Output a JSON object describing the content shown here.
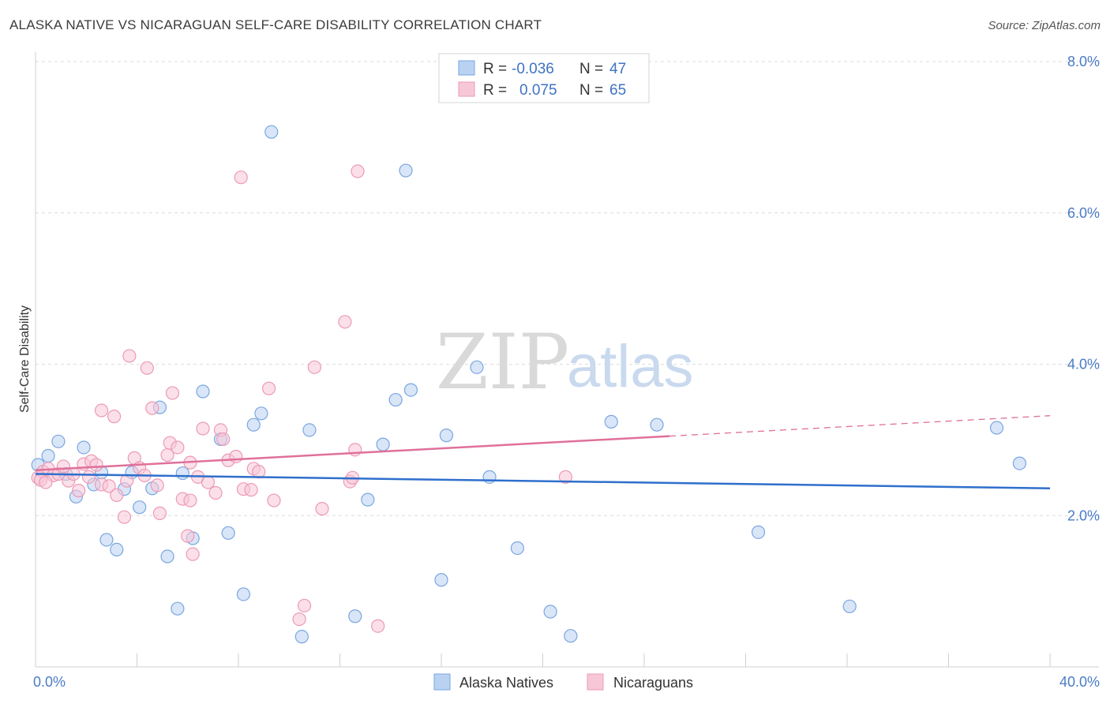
{
  "title": "ALASKA NATIVE VS NICARAGUAN SELF-CARE DISABILITY CORRELATION CHART",
  "source": "Source: ZipAtlas.com",
  "watermark": {
    "zip": "ZIP",
    "atlas": "atlas"
  },
  "chart_data": {
    "type": "scatter",
    "ylabel": "Self-Care Disability",
    "xlim": [
      0,
      40
    ],
    "ylim": [
      0,
      8
    ],
    "x_tick_labels": [
      "0.0%",
      "40.0%"
    ],
    "y_ticks": [
      2,
      4,
      6,
      8
    ],
    "y_tick_labels": [
      "2.0%",
      "4.0%",
      "6.0%",
      "8.0%"
    ],
    "grid": "horizontal dashed",
    "legend_placement": "top-center",
    "legend": {
      "rows": [
        {
          "r_label": "R =",
          "r_value": "-0.036",
          "n_label": "N =",
          "n_value": "47"
        },
        {
          "r_label": "R =",
          "r_value": "0.075",
          "n_label": "N =",
          "n_value": "65"
        }
      ]
    },
    "series": [
      {
        "name": "Alaska Natives",
        "color": "#7aa6e0",
        "fill": "#b9d2f2",
        "trend_color": "#2f6fcc",
        "trend": {
          "x0": 0,
          "y0": 2.55,
          "x1": 40,
          "y1": 2.36
        },
        "points": [
          [
            0.1,
            2.67
          ],
          [
            0.5,
            2.79
          ],
          [
            0.9,
            2.98
          ],
          [
            1.2,
            2.55
          ],
          [
            1.6,
            2.25
          ],
          [
            1.9,
            2.9
          ],
          [
            2.3,
            2.41
          ],
          [
            2.6,
            2.57
          ],
          [
            2.8,
            1.68
          ],
          [
            3.2,
            1.55
          ],
          [
            3.5,
            2.35
          ],
          [
            3.8,
            2.57
          ],
          [
            4.1,
            2.11
          ],
          [
            4.6,
            2.36
          ],
          [
            4.9,
            3.43
          ],
          [
            5.2,
            1.46
          ],
          [
            5.6,
            0.77
          ],
          [
            5.8,
            2.56
          ],
          [
            6.2,
            1.7
          ],
          [
            6.6,
            3.64
          ],
          [
            7.3,
            3.01
          ],
          [
            7.6,
            1.77
          ],
          [
            8.2,
            0.96
          ],
          [
            8.6,
            3.2
          ],
          [
            8.9,
            3.35
          ],
          [
            9.3,
            7.07
          ],
          [
            10.5,
            0.4
          ],
          [
            10.8,
            3.13
          ],
          [
            12.6,
            0.67
          ],
          [
            13.1,
            2.21
          ],
          [
            13.7,
            2.94
          ],
          [
            14.2,
            3.53
          ],
          [
            14.6,
            6.56
          ],
          [
            14.8,
            3.66
          ],
          [
            16.0,
            1.15
          ],
          [
            16.2,
            3.06
          ],
          [
            17.4,
            3.96
          ],
          [
            17.9,
            2.51
          ],
          [
            19.0,
            1.57
          ],
          [
            20.3,
            0.73
          ],
          [
            21.1,
            0.41
          ],
          [
            22.7,
            3.24
          ],
          [
            24.5,
            3.2
          ],
          [
            28.5,
            1.78
          ],
          [
            32.1,
            0.8
          ],
          [
            37.9,
            3.16
          ],
          [
            38.8,
            2.69
          ]
        ]
      },
      {
        "name": "Nicaraguans",
        "color": "#ec9ab6",
        "fill": "#f7c7d7",
        "trend_color": "#e0709a",
        "trend": {
          "x0": 0,
          "y0": 2.6,
          "x1": 25,
          "y1": 3.05
        },
        "trend_ext": {
          "x0": 25,
          "y0": 3.05,
          "x1": 40,
          "y1": 3.32
        },
        "points": [
          [
            0.1,
            2.5
          ],
          [
            0.3,
            2.58
          ],
          [
            0.5,
            2.62
          ],
          [
            0.7,
            2.53
          ],
          [
            0.9,
            2.55
          ],
          [
            1.1,
            2.65
          ],
          [
            1.3,
            2.46
          ],
          [
            1.5,
            2.55
          ],
          [
            1.7,
            2.33
          ],
          [
            1.9,
            2.68
          ],
          [
            2.1,
            2.51
          ],
          [
            2.2,
            2.72
          ],
          [
            2.4,
            2.67
          ],
          [
            2.6,
            2.41
          ],
          [
            2.6,
            3.39
          ],
          [
            2.9,
            2.39
          ],
          [
            3.1,
            3.31
          ],
          [
            3.2,
            2.27
          ],
          [
            3.5,
            1.98
          ],
          [
            3.6,
            2.46
          ],
          [
            3.7,
            4.11
          ],
          [
            3.9,
            2.76
          ],
          [
            4.1,
            2.63
          ],
          [
            4.3,
            2.53
          ],
          [
            4.4,
            3.95
          ],
          [
            4.6,
            3.42
          ],
          [
            4.8,
            2.4
          ],
          [
            4.9,
            2.03
          ],
          [
            5.2,
            2.8
          ],
          [
            5.3,
            2.96
          ],
          [
            5.4,
            3.62
          ],
          [
            5.6,
            2.9
          ],
          [
            5.8,
            2.22
          ],
          [
            6.0,
            1.73
          ],
          [
            6.1,
            2.2
          ],
          [
            6.1,
            2.7
          ],
          [
            6.2,
            1.49
          ],
          [
            6.4,
            2.51
          ],
          [
            6.6,
            3.15
          ],
          [
            6.8,
            2.44
          ],
          [
            7.1,
            2.3
          ],
          [
            7.3,
            3.13
          ],
          [
            7.4,
            3.01
          ],
          [
            7.6,
            2.73
          ],
          [
            7.9,
            2.78
          ],
          [
            8.1,
            6.47
          ],
          [
            8.2,
            2.35
          ],
          [
            8.5,
            2.34
          ],
          [
            8.6,
            2.62
          ],
          [
            8.8,
            2.58
          ],
          [
            9.2,
            3.68
          ],
          [
            9.4,
            2.2
          ],
          [
            10.4,
            0.63
          ],
          [
            10.6,
            0.81
          ],
          [
            11.0,
            3.96
          ],
          [
            11.3,
            2.09
          ],
          [
            12.2,
            4.56
          ],
          [
            12.4,
            2.45
          ],
          [
            12.5,
            2.5
          ],
          [
            12.6,
            2.87
          ],
          [
            12.7,
            6.55
          ],
          [
            13.5,
            0.54
          ],
          [
            20.9,
            2.51
          ],
          [
            0.2,
            2.47
          ],
          [
            0.4,
            2.44
          ]
        ]
      }
    ]
  }
}
